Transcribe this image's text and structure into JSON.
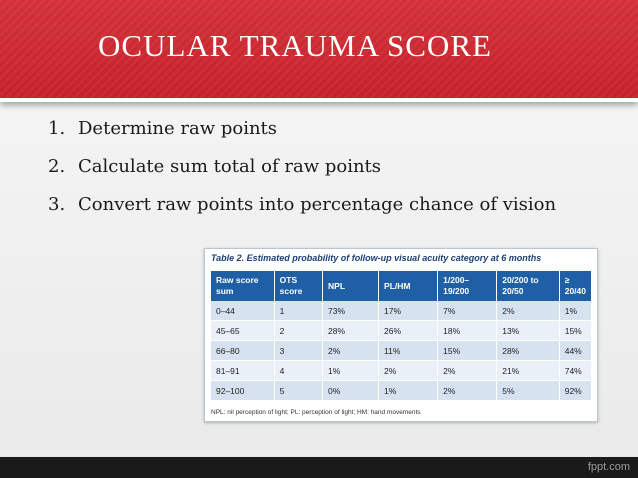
{
  "header": {
    "title": "OCULAR TRAUMA SCORE"
  },
  "steps": [
    {
      "num": "1.",
      "text": "Determine raw points"
    },
    {
      "num": "2.",
      "text": "Calculate sum total of raw points"
    },
    {
      "num": "3.",
      "text": "Convert raw points into percentage chance of vision"
    }
  ],
  "table": {
    "caption": "Table 2. Estimated probability of follow-up visual acuity category at 6 months",
    "headers": [
      "Raw score sum",
      "OTS score",
      "NPL",
      "PL/HM",
      "1/200– 19/200",
      "20/200 to 20/50",
      "≥ 20/40"
    ],
    "rows": [
      [
        "0–44",
        "1",
        "73%",
        "17%",
        "7%",
        "2%",
        "1%"
      ],
      [
        "45–65",
        "2",
        "28%",
        "26%",
        "18%",
        "13%",
        "15%"
      ],
      [
        "66–80",
        "3",
        "2%",
        "11%",
        "15%",
        "28%",
        "44%"
      ],
      [
        "81–91",
        "4",
        "1%",
        "2%",
        "2%",
        "21%",
        "74%"
      ],
      [
        "92–100",
        "5",
        "0%",
        "1%",
        "2%",
        "5%",
        "92%"
      ]
    ],
    "footnote": "NPL: nil perception of light; PL: perception of light; HM: hand movements"
  },
  "footer": {
    "brand": "fppt.com"
  },
  "colors": {
    "header_red": "#c8232c",
    "table_header_blue": "#1f5fa6",
    "row_light_blue": "#d6e2f0"
  }
}
